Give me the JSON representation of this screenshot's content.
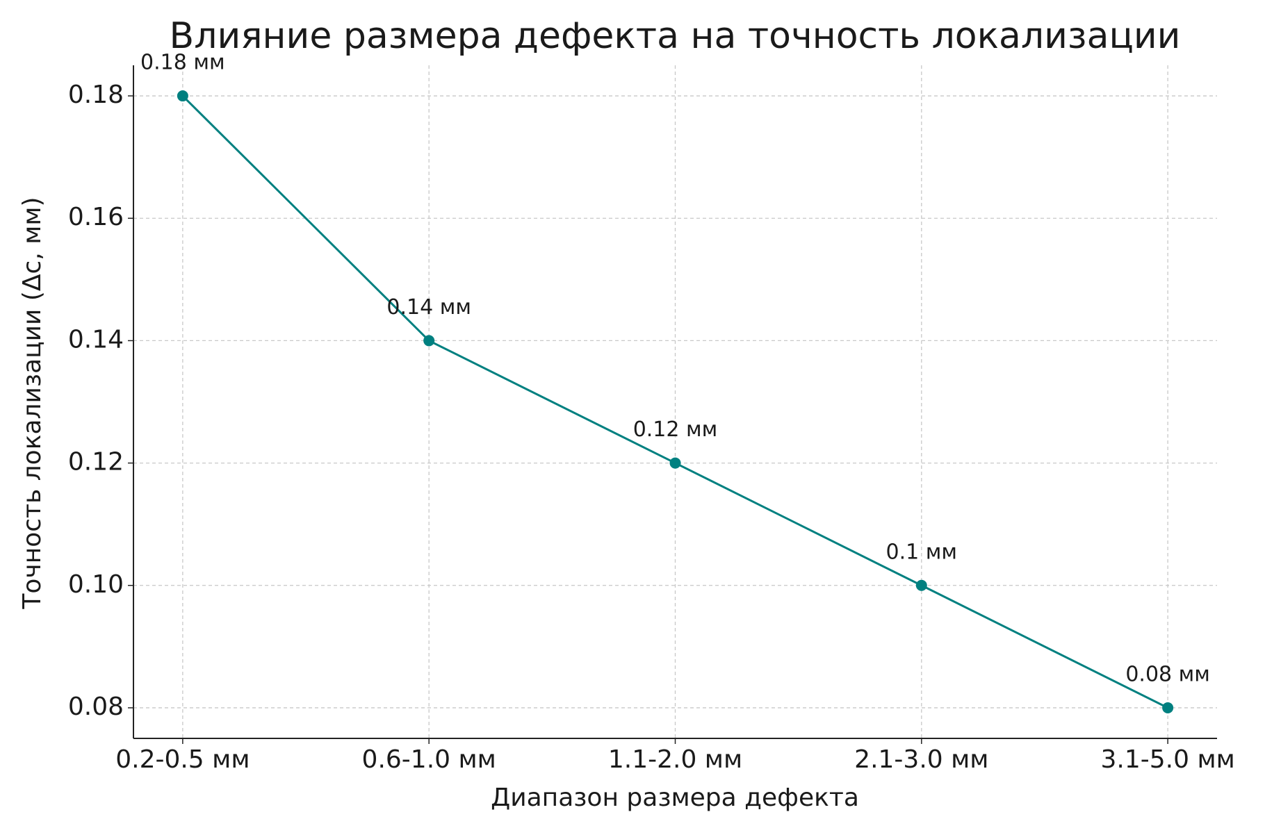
{
  "chart_data": {
    "type": "line",
    "title": "Влияние размера дефекта на точность локализации",
    "x_label": "Диапазон размера дефекта",
    "y_label": "Точность локализации (Δc, мм)",
    "categories": [
      "0.2-0.5 мм",
      "0.6-1.0 мм",
      "1.1-2.0 мм",
      "2.1-3.0 мм",
      "3.1-5.0 мм"
    ],
    "values": [
      0.18,
      0.14,
      0.12,
      0.1,
      0.08
    ],
    "value_labels": [
      "0.18 мм",
      "0.14 мм",
      "0.12 мм",
      "0.1 мм",
      "0.08 мм"
    ],
    "color": "#008080",
    "ylim": [
      0.075,
      0.185
    ],
    "yticks": [
      0.08,
      {
        "value": 0.1,
        "label": "0.10"
      },
      0.12,
      0.14,
      0.16,
      0.18
    ],
    "grid": true
  }
}
